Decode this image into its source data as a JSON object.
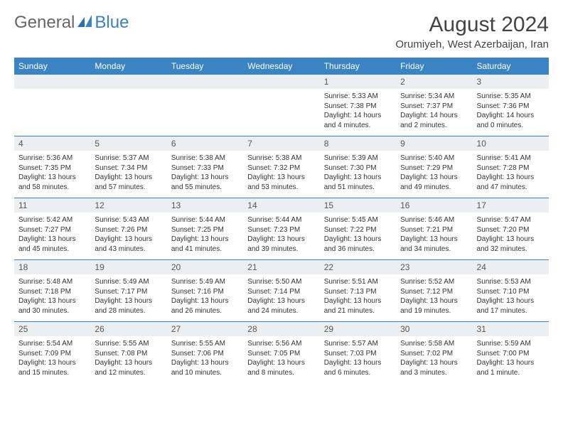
{
  "brand": {
    "part1": "General",
    "part2": "Blue"
  },
  "title": "August 2024",
  "location": "Orumiyeh, West Azerbaijan, Iran",
  "colors": {
    "header_bg": "#3b84c4",
    "header_text": "#ffffff",
    "daynum_bg": "#eceff1",
    "week_divider": "#3b7fc4",
    "body_text": "#333333",
    "title_text": "#444444",
    "brand_gray": "#666666",
    "brand_blue": "#3b7fc4",
    "page_bg": "#ffffff"
  },
  "typography": {
    "title_fontsize": 30,
    "location_fontsize": 15,
    "weekday_fontsize": 12,
    "daynum_fontsize": 12,
    "body_fontsize": 10
  },
  "weekdays": [
    "Sunday",
    "Monday",
    "Tuesday",
    "Wednesday",
    "Thursday",
    "Friday",
    "Saturday"
  ],
  "weeks": [
    [
      null,
      null,
      null,
      null,
      {
        "n": "1",
        "sr": "Sunrise: 5:33 AM",
        "ss": "Sunset: 7:38 PM",
        "dl": "Daylight: 14 hours and 4 minutes."
      },
      {
        "n": "2",
        "sr": "Sunrise: 5:34 AM",
        "ss": "Sunset: 7:37 PM",
        "dl": "Daylight: 14 hours and 2 minutes."
      },
      {
        "n": "3",
        "sr": "Sunrise: 5:35 AM",
        "ss": "Sunset: 7:36 PM",
        "dl": "Daylight: 14 hours and 0 minutes."
      }
    ],
    [
      {
        "n": "4",
        "sr": "Sunrise: 5:36 AM",
        "ss": "Sunset: 7:35 PM",
        "dl": "Daylight: 13 hours and 58 minutes."
      },
      {
        "n": "5",
        "sr": "Sunrise: 5:37 AM",
        "ss": "Sunset: 7:34 PM",
        "dl": "Daylight: 13 hours and 57 minutes."
      },
      {
        "n": "6",
        "sr": "Sunrise: 5:38 AM",
        "ss": "Sunset: 7:33 PM",
        "dl": "Daylight: 13 hours and 55 minutes."
      },
      {
        "n": "7",
        "sr": "Sunrise: 5:38 AM",
        "ss": "Sunset: 7:32 PM",
        "dl": "Daylight: 13 hours and 53 minutes."
      },
      {
        "n": "8",
        "sr": "Sunrise: 5:39 AM",
        "ss": "Sunset: 7:30 PM",
        "dl": "Daylight: 13 hours and 51 minutes."
      },
      {
        "n": "9",
        "sr": "Sunrise: 5:40 AM",
        "ss": "Sunset: 7:29 PM",
        "dl": "Daylight: 13 hours and 49 minutes."
      },
      {
        "n": "10",
        "sr": "Sunrise: 5:41 AM",
        "ss": "Sunset: 7:28 PM",
        "dl": "Daylight: 13 hours and 47 minutes."
      }
    ],
    [
      {
        "n": "11",
        "sr": "Sunrise: 5:42 AM",
        "ss": "Sunset: 7:27 PM",
        "dl": "Daylight: 13 hours and 45 minutes."
      },
      {
        "n": "12",
        "sr": "Sunrise: 5:43 AM",
        "ss": "Sunset: 7:26 PM",
        "dl": "Daylight: 13 hours and 43 minutes."
      },
      {
        "n": "13",
        "sr": "Sunrise: 5:44 AM",
        "ss": "Sunset: 7:25 PM",
        "dl": "Daylight: 13 hours and 41 minutes."
      },
      {
        "n": "14",
        "sr": "Sunrise: 5:44 AM",
        "ss": "Sunset: 7:23 PM",
        "dl": "Daylight: 13 hours and 39 minutes."
      },
      {
        "n": "15",
        "sr": "Sunrise: 5:45 AM",
        "ss": "Sunset: 7:22 PM",
        "dl": "Daylight: 13 hours and 36 minutes."
      },
      {
        "n": "16",
        "sr": "Sunrise: 5:46 AM",
        "ss": "Sunset: 7:21 PM",
        "dl": "Daylight: 13 hours and 34 minutes."
      },
      {
        "n": "17",
        "sr": "Sunrise: 5:47 AM",
        "ss": "Sunset: 7:20 PM",
        "dl": "Daylight: 13 hours and 32 minutes."
      }
    ],
    [
      {
        "n": "18",
        "sr": "Sunrise: 5:48 AM",
        "ss": "Sunset: 7:18 PM",
        "dl": "Daylight: 13 hours and 30 minutes."
      },
      {
        "n": "19",
        "sr": "Sunrise: 5:49 AM",
        "ss": "Sunset: 7:17 PM",
        "dl": "Daylight: 13 hours and 28 minutes."
      },
      {
        "n": "20",
        "sr": "Sunrise: 5:49 AM",
        "ss": "Sunset: 7:16 PM",
        "dl": "Daylight: 13 hours and 26 minutes."
      },
      {
        "n": "21",
        "sr": "Sunrise: 5:50 AM",
        "ss": "Sunset: 7:14 PM",
        "dl": "Daylight: 13 hours and 24 minutes."
      },
      {
        "n": "22",
        "sr": "Sunrise: 5:51 AM",
        "ss": "Sunset: 7:13 PM",
        "dl": "Daylight: 13 hours and 21 minutes."
      },
      {
        "n": "23",
        "sr": "Sunrise: 5:52 AM",
        "ss": "Sunset: 7:12 PM",
        "dl": "Daylight: 13 hours and 19 minutes."
      },
      {
        "n": "24",
        "sr": "Sunrise: 5:53 AM",
        "ss": "Sunset: 7:10 PM",
        "dl": "Daylight: 13 hours and 17 minutes."
      }
    ],
    [
      {
        "n": "25",
        "sr": "Sunrise: 5:54 AM",
        "ss": "Sunset: 7:09 PM",
        "dl": "Daylight: 13 hours and 15 minutes."
      },
      {
        "n": "26",
        "sr": "Sunrise: 5:55 AM",
        "ss": "Sunset: 7:08 PM",
        "dl": "Daylight: 13 hours and 12 minutes."
      },
      {
        "n": "27",
        "sr": "Sunrise: 5:55 AM",
        "ss": "Sunset: 7:06 PM",
        "dl": "Daylight: 13 hours and 10 minutes."
      },
      {
        "n": "28",
        "sr": "Sunrise: 5:56 AM",
        "ss": "Sunset: 7:05 PM",
        "dl": "Daylight: 13 hours and 8 minutes."
      },
      {
        "n": "29",
        "sr": "Sunrise: 5:57 AM",
        "ss": "Sunset: 7:03 PM",
        "dl": "Daylight: 13 hours and 6 minutes."
      },
      {
        "n": "30",
        "sr": "Sunrise: 5:58 AM",
        "ss": "Sunset: 7:02 PM",
        "dl": "Daylight: 13 hours and 3 minutes."
      },
      {
        "n": "31",
        "sr": "Sunrise: 5:59 AM",
        "ss": "Sunset: 7:00 PM",
        "dl": "Daylight: 13 hours and 1 minute."
      }
    ]
  ]
}
